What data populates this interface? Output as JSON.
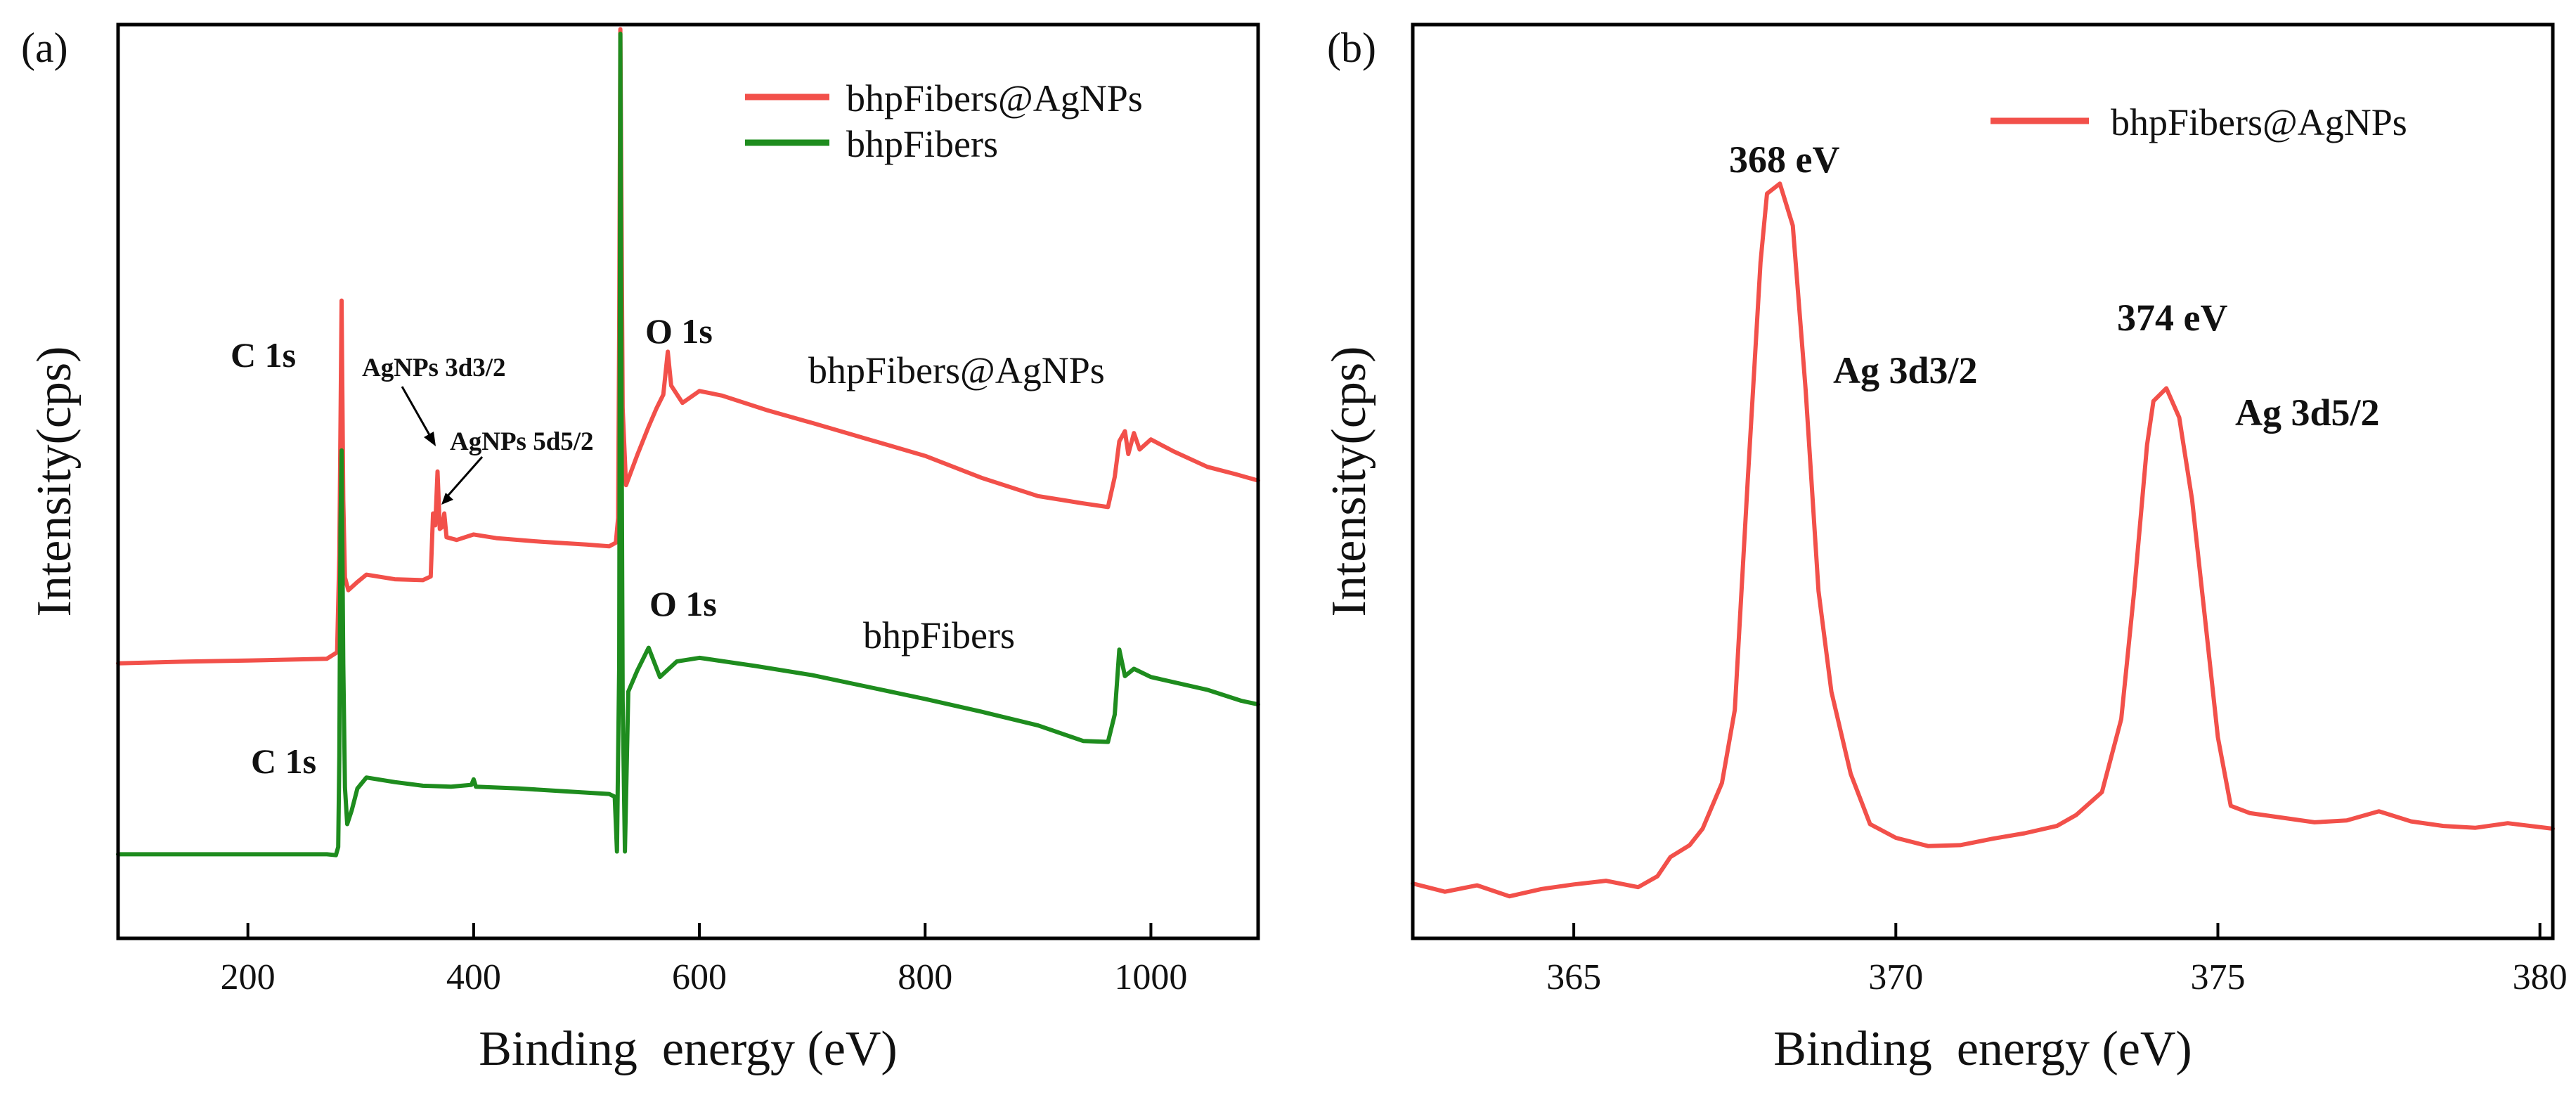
{
  "chart_data": [
    {
      "panel_label": "(a)",
      "type": "line",
      "title": "",
      "xlabel": "Binding  energy (eV)",
      "ylabel": "Intensity(cps)",
      "xlim": [
        85,
        1095
      ],
      "ylim": [
        0,
        100
      ],
      "xticks": [
        200,
        400,
        600,
        800,
        1000
      ],
      "ytick_labels_shown": false,
      "grid": false,
      "legend_position": "top-right",
      "series": [
        {
          "name": "bhpFibers@AgNPs",
          "color": "#f2504a",
          "points": [
            [
              85,
              30.1
            ],
            [
              150,
              30.3
            ],
            [
              200,
              30.4
            ],
            [
              270,
              30.6
            ],
            [
              279,
              31.3
            ],
            [
              281,
              42.0
            ],
            [
              283,
              69.8
            ],
            [
              284.5,
              48.0
            ],
            [
              286,
              39.5
            ],
            [
              289,
              38.1
            ],
            [
              297,
              39.0
            ],
            [
              305,
              39.8
            ],
            [
              330,
              39.3
            ],
            [
              355,
              39.2
            ],
            [
              362,
              39.6
            ],
            [
              364,
              46.5
            ],
            [
              366,
              45.2
            ],
            [
              368,
              51.1
            ],
            [
              370,
              44.8
            ],
            [
              372,
              45.0
            ],
            [
              374,
              46.5
            ],
            [
              376,
              43.9
            ],
            [
              385,
              43.6
            ],
            [
              400,
              44.2
            ],
            [
              420,
              43.8
            ],
            [
              460,
              43.4
            ],
            [
              500,
              43.1
            ],
            [
              520,
              42.9
            ],
            [
              526,
              43.3
            ],
            [
              528,
              46.0
            ],
            [
              529,
              67.2
            ],
            [
              530,
              99.5
            ],
            [
              531,
              80.0
            ],
            [
              532,
              58.0
            ],
            [
              535,
              49.6
            ],
            [
              545,
              52.9
            ],
            [
              555,
              56.0
            ],
            [
              562,
              58.0
            ],
            [
              568,
              59.5
            ],
            [
              572,
              64.2
            ],
            [
              575,
              60.5
            ],
            [
              585,
              58.6
            ],
            [
              600,
              59.9
            ],
            [
              620,
              59.4
            ],
            [
              660,
              57.8
            ],
            [
              700,
              56.4
            ],
            [
              750,
              54.6
            ],
            [
              800,
              52.8
            ],
            [
              850,
              50.4
            ],
            [
              900,
              48.4
            ],
            [
              940,
              47.6
            ],
            [
              962,
              47.2
            ],
            [
              968,
              50.5
            ],
            [
              972,
              54.4
            ],
            [
              977,
              55.5
            ],
            [
              980,
              53.0
            ],
            [
              985,
              55.3
            ],
            [
              990,
              53.5
            ],
            [
              1000,
              54.6
            ],
            [
              1020,
              53.3
            ],
            [
              1050,
              51.6
            ],
            [
              1075,
              50.8
            ],
            [
              1095,
              50.1
            ]
          ]
        },
        {
          "name": "bhpFibers",
          "color": "#1e8c1e",
          "points": [
            [
              85,
              9.2
            ],
            [
              150,
              9.2
            ],
            [
              200,
              9.2
            ],
            [
              270,
              9.2
            ],
            [
              278,
              9.1
            ],
            [
              280,
              10.0
            ],
            [
              281,
              20.0
            ],
            [
              282,
              45.0
            ],
            [
              283,
              53.4
            ],
            [
              284.5,
              30.0
            ],
            [
              286,
              16.5
            ],
            [
              288,
              12.5
            ],
            [
              292,
              14.0
            ],
            [
              297,
              16.4
            ],
            [
              305,
              17.6
            ],
            [
              330,
              17.1
            ],
            [
              355,
              16.7
            ],
            [
              380,
              16.6
            ],
            [
              398,
              16.8
            ],
            [
              400,
              17.4
            ],
            [
              402,
              16.6
            ],
            [
              440,
              16.4
            ],
            [
              480,
              16.1
            ],
            [
              520,
              15.8
            ],
            [
              525,
              15.5
            ],
            [
              527,
              9.5
            ],
            [
              529,
              30.0
            ],
            [
              530,
              99.0
            ],
            [
              531,
              60.0
            ],
            [
              532,
              26.0
            ],
            [
              534,
              9.5
            ],
            [
              537,
              27.0
            ],
            [
              545,
              29.3
            ],
            [
              555,
              31.8
            ],
            [
              565,
              28.6
            ],
            [
              580,
              30.3
            ],
            [
              600,
              30.7
            ],
            [
              650,
              29.8
            ],
            [
              700,
              28.8
            ],
            [
              750,
              27.5
            ],
            [
              800,
              26.2
            ],
            [
              850,
              24.8
            ],
            [
              900,
              23.3
            ],
            [
              940,
              21.6
            ],
            [
              962,
              21.5
            ],
            [
              968,
              24.5
            ],
            [
              972,
              31.6
            ],
            [
              977,
              28.7
            ],
            [
              985,
              29.5
            ],
            [
              1000,
              28.6
            ],
            [
              1050,
              27.2
            ],
            [
              1080,
              26.0
            ],
            [
              1095,
              25.6
            ]
          ]
        }
      ],
      "annotations": {
        "c1s_top": "C 1s",
        "agnps_3d": "AgNPs 3d3/2",
        "agnps_5d": "AgNPs 5d5/2",
        "o1s_top": "O 1s",
        "curve_top": "bhpFibers@AgNPs",
        "o1s_bottom": "O 1s",
        "curve_bottom": "bhpFibers",
        "c1s_bottom": "C 1s"
      }
    },
    {
      "panel_label": "(b)",
      "type": "line",
      "title": "",
      "xlabel": "Binding  energy (eV)",
      "ylabel": "Intensity(cps)",
      "xlim": [
        362.5,
        380.2
      ],
      "ylim": [
        0,
        100
      ],
      "xticks": [
        365,
        370,
        375,
        380
      ],
      "ytick_labels_shown": false,
      "grid": false,
      "legend_position": "top-right",
      "series": [
        {
          "name": "bhpFibers@AgNPs",
          "color": "#f2504a",
          "points": [
            [
              362.5,
              6.0
            ],
            [
              363.0,
              5.1
            ],
            [
              363.5,
              5.8
            ],
            [
              364.0,
              4.6
            ],
            [
              364.5,
              5.4
            ],
            [
              365.0,
              5.9
            ],
            [
              365.5,
              6.3
            ],
            [
              366.0,
              5.6
            ],
            [
              366.3,
              6.8
            ],
            [
              366.5,
              8.9
            ],
            [
              366.8,
              10.2
            ],
            [
              367.0,
              12.0
            ],
            [
              367.3,
              17.0
            ],
            [
              367.5,
              25.0
            ],
            [
              367.7,
              50.0
            ],
            [
              367.9,
              74.0
            ],
            [
              368.0,
              81.5
            ],
            [
              368.2,
              82.6
            ],
            [
              368.4,
              78.0
            ],
            [
              368.6,
              60.0
            ],
            [
              368.8,
              38.0
            ],
            [
              369.0,
              27.0
            ],
            [
              369.3,
              18.0
            ],
            [
              369.6,
              12.5
            ],
            [
              370.0,
              11.0
            ],
            [
              370.5,
              10.1
            ],
            [
              371.0,
              10.2
            ],
            [
              371.5,
              10.9
            ],
            [
              372.0,
              11.5
            ],
            [
              372.5,
              12.3
            ],
            [
              372.8,
              13.5
            ],
            [
              373.2,
              16.0
            ],
            [
              373.5,
              24.0
            ],
            [
              373.7,
              38.0
            ],
            [
              373.9,
              54.0
            ],
            [
              374.0,
              58.8
            ],
            [
              374.2,
              60.2
            ],
            [
              374.4,
              57.0
            ],
            [
              374.6,
              48.0
            ],
            [
              374.8,
              35.0
            ],
            [
              375.0,
              22.0
            ],
            [
              375.2,
              14.5
            ],
            [
              375.5,
              13.7
            ],
            [
              376.0,
              13.2
            ],
            [
              376.5,
              12.7
            ],
            [
              377.0,
              12.9
            ],
            [
              377.5,
              13.9
            ],
            [
              378.0,
              12.8
            ],
            [
              378.5,
              12.3
            ],
            [
              379.0,
              12.1
            ],
            [
              379.5,
              12.6
            ],
            [
              380.2,
              12.0
            ]
          ]
        }
      ],
      "annotations": {
        "peak1_energy": "368 eV",
        "peak1_label": "Ag 3d3/2",
        "peak2_energy": "374 eV",
        "peak2_label": "Ag 3d5/2"
      }
    }
  ]
}
